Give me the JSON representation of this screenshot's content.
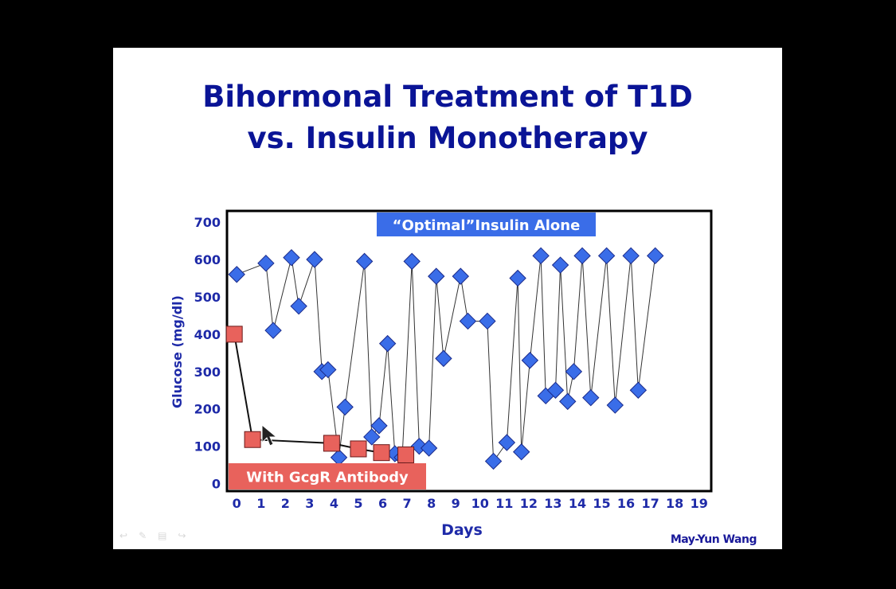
{
  "slide": {
    "title_line1": "Bihormonal Treatment of T1D",
    "title_line2": "vs. Insulin Monotherapy",
    "credit": "May-Yun Wang"
  },
  "colors": {
    "title": "#0a1496",
    "axis_text": "#1e2aa8",
    "insulin_series": "#3a6de8",
    "antibody_series": "#e8625c"
  },
  "icons": [
    "arrow-cursor-icon",
    "back-arrow-icon",
    "pen-icon",
    "menu-icon",
    "forward-arrow-icon"
  ],
  "chart_data": {
    "type": "line",
    "xlabel": "Days",
    "ylabel": "Glucose (mg/dl)",
    "xlim": [
      -0.4,
      19.5
    ],
    "ylim": [
      -20,
      730
    ],
    "xticks": [
      0,
      1,
      2,
      3,
      4,
      5,
      6,
      7,
      8,
      9,
      10,
      11,
      12,
      13,
      14,
      15,
      16,
      17,
      18,
      19
    ],
    "yticks": [
      0,
      100,
      200,
      300,
      400,
      500,
      600,
      700
    ],
    "grid": false,
    "series": [
      {
        "name": "“Optimal”Insulin Alone",
        "marker": "diamond",
        "x": [
          0,
          1.2,
          1.5,
          2.25,
          2.55,
          3.2,
          3.5,
          3.75,
          4.2,
          4.45,
          5.25,
          5.55,
          5.85,
          6.2,
          6.5,
          6.8,
          7.2,
          7.5,
          7.9,
          8.2,
          8.5,
          9.2,
          9.5,
          10.3,
          10.55,
          11.1,
          11.55,
          11.7,
          12.05,
          12.5,
          12.7,
          13.1,
          13.3,
          13.6,
          13.85,
          14.2,
          14.55,
          15.2,
          15.55,
          16.2,
          16.5,
          17.2
        ],
        "y": [
          560,
          590,
          410,
          605,
          475,
          600,
          300,
          305,
          70,
          205,
          595,
          125,
          155,
          375,
          80,
          70,
          595,
          100,
          95,
          555,
          335,
          555,
          435,
          435,
          60,
          110,
          550,
          85,
          330,
          610,
          235,
          250,
          585,
          220,
          300,
          610,
          230,
          610,
          210,
          610,
          250,
          610
        ]
      },
      {
        "name": "With GcgR Antibody",
        "marker": "square",
        "x": [
          -0.1,
          0.65,
          3.9,
          5.0,
          5.95,
          6.95
        ],
        "y": [
          400,
          118,
          108,
          93,
          83,
          77
        ]
      }
    ],
    "annotations": [
      {
        "text": "“Optimal”Insulin Alone",
        "series": 0
      },
      {
        "text": "With GcgR Antibody",
        "series": 1
      }
    ]
  }
}
